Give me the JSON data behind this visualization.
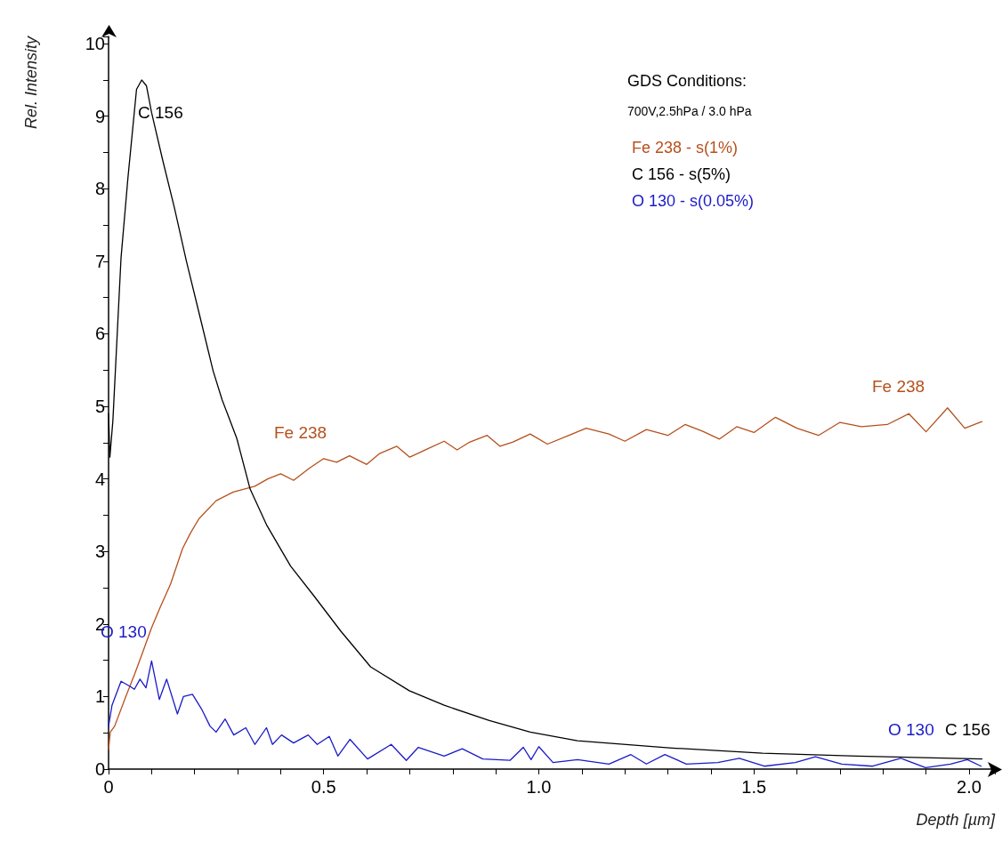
{
  "chart_data": {
    "type": "line",
    "xlabel": "Depth [µm]",
    "ylabel": "Rel. Intensity",
    "legend_title": "GDS Conditions:",
    "legend": "top right",
    "grid": false,
    "marker": "none",
    "line_style": "solid",
    "xlim": [
      0,
      2.06
    ],
    "xticks": [
      0,
      0.5,
      {
        "value": 1,
        "label": "1.0"
      },
      1.5,
      {
        "value": 2,
        "label": "2.0"
      }
    ],
    "ylim": [
      0,
      10.1
    ],
    "yticks": [
      0,
      1,
      2,
      3,
      4,
      5,
      6,
      7,
      8,
      9,
      10
    ],
    "series": [
      {
        "name": "Fe 238 - s(1%)",
        "color": "#b5501c",
        "x": [
          0,
          0.004,
          0.014,
          0.04,
          0.06,
          0.08,
          0.1,
          0.12,
          0.144,
          0.172,
          0.19,
          0.21,
          0.25,
          0.29,
          0.34,
          0.37,
          0.4,
          0.43,
          0.467,
          0.5,
          0.53,
          0.56,
          0.6,
          0.63,
          0.67,
          0.7,
          0.74,
          0.78,
          0.81,
          0.84,
          0.88,
          0.91,
          0.94,
          0.98,
          1.02,
          1.07,
          1.11,
          1.163,
          1.2,
          1.25,
          1.3,
          1.34,
          1.38,
          1.42,
          1.46,
          1.5,
          1.55,
          1.6,
          1.65,
          1.7,
          1.75,
          1.81,
          1.86,
          1.9,
          1.95,
          1.99,
          2.03
        ],
        "values": [
          0.27,
          0.51,
          0.59,
          1.0,
          1.3,
          1.62,
          1.95,
          2.23,
          2.55,
          3.04,
          3.25,
          3.45,
          3.7,
          3.82,
          3.9,
          4.0,
          4.07,
          3.98,
          4.15,
          4.28,
          4.23,
          4.32,
          4.2,
          4.35,
          4.45,
          4.3,
          4.41,
          4.52,
          4.4,
          4.51,
          4.6,
          4.45,
          4.51,
          4.62,
          4.48,
          4.6,
          4.7,
          4.62,
          4.52,
          4.68,
          4.6,
          4.75,
          4.66,
          4.55,
          4.72,
          4.64,
          4.85,
          4.7,
          4.6,
          4.78,
          4.72,
          4.75,
          4.9,
          4.65,
          4.98,
          4.7,
          4.79
        ]
      },
      {
        "name": "C 156 - s(5%)",
        "color": "#000000",
        "x": [
          0,
          0.003,
          0.01,
          0.029,
          0.045,
          0.055,
          0.065,
          0.077,
          0.088,
          0.1,
          0.126,
          0.153,
          0.181,
          0.216,
          0.243,
          0.264,
          0.298,
          0.329,
          0.367,
          0.423,
          0.477,
          0.54,
          0.609,
          0.699,
          0.78,
          0.885,
          0.98,
          1.09,
          1.31,
          1.52,
          1.74,
          2.03
        ],
        "values": [
          4.9,
          4.3,
          4.8,
          7.05,
          8.15,
          8.76,
          9.37,
          9.5,
          9.42,
          9.05,
          8.39,
          7.74,
          7.0,
          6.15,
          5.49,
          5.09,
          4.56,
          3.86,
          3.37,
          2.8,
          2.39,
          1.9,
          1.41,
          1.08,
          0.88,
          0.67,
          0.51,
          0.39,
          0.29,
          0.22,
          0.18,
          0.14
        ]
      },
      {
        "name": "O 130 - s(0.05%)",
        "color": "#1a1ac8",
        "x": [
          0,
          0.008,
          0.029,
          0.05,
          0.06,
          0.073,
          0.087,
          0.1,
          0.118,
          0.135,
          0.16,
          0.174,
          0.195,
          0.216,
          0.236,
          0.25,
          0.271,
          0.291,
          0.319,
          0.34,
          0.367,
          0.381,
          0.402,
          0.43,
          0.464,
          0.485,
          0.513,
          0.533,
          0.561,
          0.602,
          0.657,
          0.692,
          0.72,
          0.78,
          0.822,
          0.87,
          0.933,
          0.964,
          0.982,
          1.0,
          1.033,
          1.09,
          1.163,
          1.214,
          1.25,
          1.293,
          1.343,
          1.416,
          1.466,
          1.524,
          1.596,
          1.643,
          1.704,
          1.776,
          1.841,
          1.899,
          1.957,
          1.996,
          2.028
        ],
        "values": [
          0.59,
          0.88,
          1.21,
          1.14,
          1.1,
          1.24,
          1.12,
          1.49,
          0.96,
          1.24,
          0.76,
          1.0,
          1.03,
          0.83,
          0.59,
          0.51,
          0.69,
          0.47,
          0.57,
          0.34,
          0.57,
          0.34,
          0.47,
          0.36,
          0.47,
          0.34,
          0.45,
          0.18,
          0.41,
          0.14,
          0.34,
          0.12,
          0.3,
          0.18,
          0.28,
          0.14,
          0.12,
          0.3,
          0.13,
          0.31,
          0.09,
          0.13,
          0.07,
          0.2,
          0.07,
          0.2,
          0.07,
          0.09,
          0.15,
          0.04,
          0.09,
          0.17,
          0.07,
          0.04,
          0.15,
          0.02,
          0.07,
          0.13,
          0.04
        ]
      }
    ],
    "annotations": [
      "700V,2.5hPa / 3.0 hPa",
      "C 156",
      "Fe 238",
      "O 130",
      "Fe 238",
      "O 130",
      "C 156"
    ]
  }
}
